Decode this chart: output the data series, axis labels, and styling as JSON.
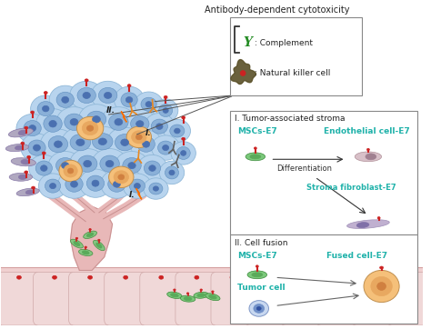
{
  "title_adcc": "Antibody-dependent cytotoxicity",
  "legend_complement": ": Complement",
  "legend_nk": ": Natural killer cell",
  "box1_title": "I. Tumor-associated stroma",
  "box1_mscs": "MSCs-E7",
  "box1_endo": "Endothelial cell-E7",
  "box1_diff": "Differentiation",
  "box1_fibro": "Stroma fibroblast-E7",
  "box2_title": "II. Cell fusion",
  "box2_mscs": "MSCs-E7",
  "box2_fused": "Fused cell-E7",
  "box2_tumor": "Tumor cell",
  "label_I_1": "I.",
  "label_I_2": "I.",
  "label_II": "II.",
  "teal": "#20b2aa",
  "green": "#228b22",
  "dark_gray": "#444444",
  "bg": "#ffffff",
  "pink_light": "#f0d0d0",
  "pink_medium": "#e8c0c0",
  "pink_dark": "#d4a0a0",
  "cell_blue_outer": "#b8d4ee",
  "cell_blue_mid": "#8ab0d8",
  "cell_blue_inner": "#4a70b0",
  "cell_orange_outer": "#f5c07a",
  "cell_orange_inner": "#d08040",
  "cell_green": "#7bc87b",
  "cell_green_dark": "#3a8a3a",
  "red_receptor": "#cc2222",
  "antibody_orange": "#e88820",
  "antibody_gray": "#808080",
  "fibroblast_color": "#c0b0d0",
  "fibroblast_nucleus": "#8070a8",
  "endothelial_color": "#d8c0c8",
  "endothelial_nucleus": "#a08090",
  "nk_color": "#5a5028",
  "nk_red": "#cc2222",
  "lightning_orange": "#f08000",
  "trunk_color": "#e8b8b8",
  "trunk_edge": "#c89090"
}
